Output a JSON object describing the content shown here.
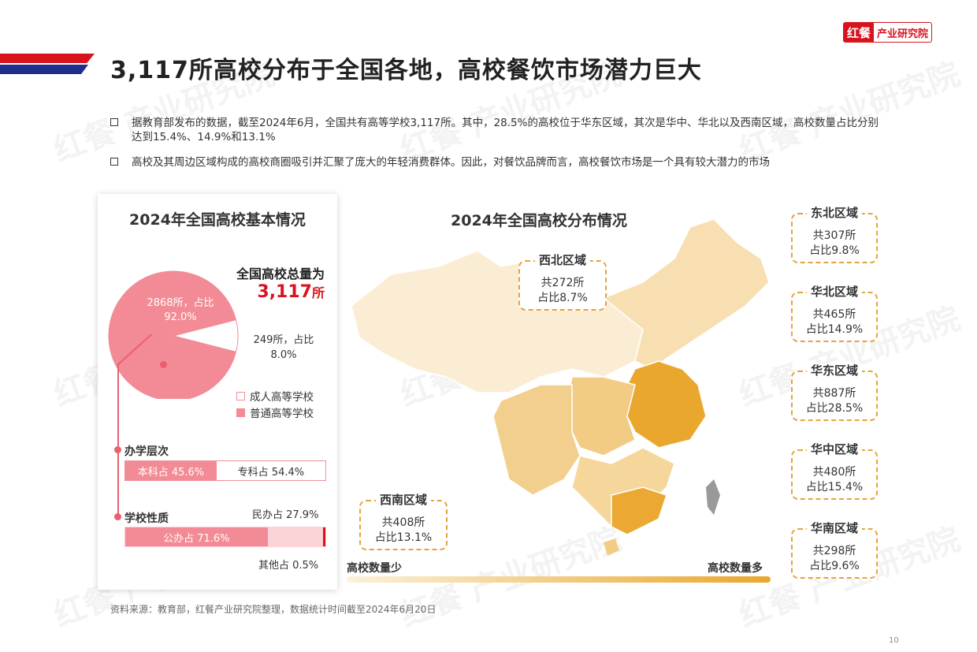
{
  "header": {
    "title": "3,117所高校分布于全国各地，高校餐饮市场潜力巨大",
    "logo_mark": "红餐",
    "logo_text": "产业研究院"
  },
  "bullets": [
    "据教育部发布的数据，截至2024年6月，全国共有高等学校3,117所。其中，28.5%的高校位于华东区域，其次是华中、华北以及西南区域，高校数量占比分别达到15.4%、14.9%和13.1%",
    "高校及其周边区域构成的高校商圈吸引并汇聚了庞大的年轻消费群体。因此，对餐饮品牌而言，高校餐饮市场是一个具有较大潜力的市场"
  ],
  "left_card": {
    "title": "2024年全国高校基本情况",
    "total_label": "全国高校总量为",
    "total_value": "3,117",
    "total_unit": "所",
    "pie": {
      "slices": [
        {
          "name": "普通高等学校",
          "count": 2868,
          "percent": 92.0,
          "label": "2868所，占比 92.0%",
          "color": "#f28b95"
        },
        {
          "name": "成人高等学校",
          "count": 249,
          "percent": 8.0,
          "label": "249所，占比 8.0%",
          "color": "#ffffff"
        }
      ]
    },
    "legend": [
      "成人高等学校",
      "普通高等学校"
    ],
    "level": {
      "label": "办学层次",
      "segments": [
        {
          "label": "本科占 45.6%",
          "percent": 45.6
        },
        {
          "label": "专科占 54.4%",
          "percent": 54.4
        }
      ]
    },
    "nature": {
      "label": "学校性质",
      "segments": [
        {
          "label": "公办占 71.6%",
          "percent": 71.6
        },
        {
          "label": "民办占 27.9%",
          "percent": 27.9
        },
        {
          "label": "其他占 0.5%",
          "percent": 0.5
        }
      ]
    }
  },
  "map": {
    "title": "2024年全国高校分布情况",
    "scale_low": "高校数量少",
    "scale_high": "高校数量多",
    "regions": {
      "northwest": {
        "name": "西北区域",
        "count": "共272所",
        "share": "占比8.7%"
      },
      "southwest": {
        "name": "西南区域",
        "count": "共408所",
        "share": "占比13.1%"
      },
      "northeast": {
        "name": "东北区域",
        "count": "共307所",
        "share": "占比9.8%"
      },
      "north": {
        "name": "华北区域",
        "count": "共465所",
        "share": "占比14.9%"
      },
      "east": {
        "name": "华东区域",
        "count": "共887所",
        "share": "占比28.5%"
      },
      "central": {
        "name": "华中区域",
        "count": "共480所",
        "share": "占比15.4%"
      },
      "south": {
        "name": "华南区域",
        "count": "共298所",
        "share": "占比9.6%"
      }
    }
  },
  "source": "资料来源：教育部，红餐产业研究院整理，数据统计时间截至2024年6月20日",
  "page_number": "10"
}
